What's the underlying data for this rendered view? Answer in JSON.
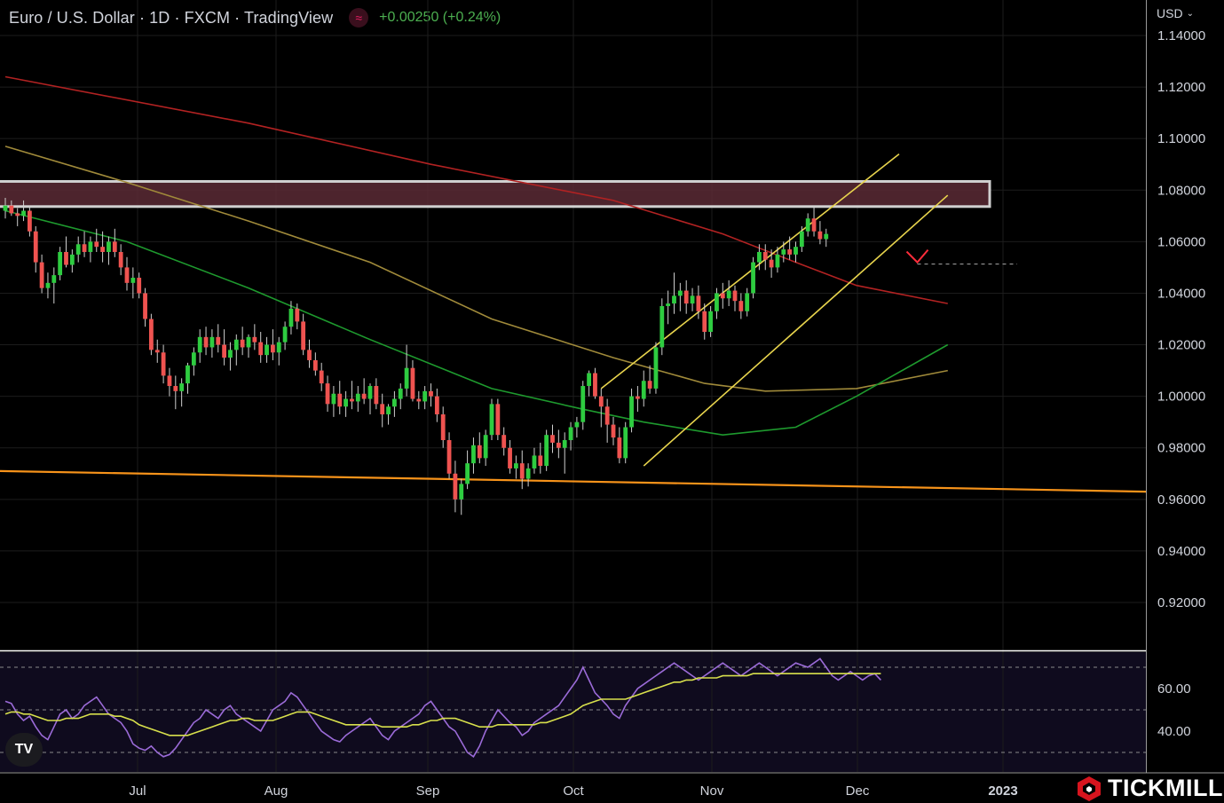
{
  "header": {
    "symbol": "Euro / U.S. Dollar · 1D · FXCM · TradingView",
    "indicator_icon": "wave-icon",
    "change": "+0.00250 (+0.24%)"
  },
  "currency_selector": {
    "label": "USD"
  },
  "brand": {
    "name": "TICKMILL",
    "color": "#d7141e"
  },
  "colors": {
    "up": "#26a69a",
    "up_bright": "#2ecc40",
    "down": "#ef5350",
    "ma_red": "#b22222",
    "ma_tan": "#a08a3a",
    "ma_green": "#1e9a2e",
    "support": "#f7931a",
    "channel": "#e8d44d",
    "zone": "#5a2a35",
    "rsi": "#9b6bd8",
    "rsi_ma": "#d8e04c"
  },
  "chart_data": {
    "type": "candlestick",
    "price_axis": {
      "min": 0.9,
      "max": 1.15,
      "ticks": [
        "1.14000",
        "1.12000",
        "1.10000",
        "1.08000",
        "1.06000",
        "1.04000",
        "1.02000",
        "1.00000",
        "0.98000",
        "0.96000",
        "0.94000",
        "0.92000"
      ]
    },
    "time_axis": {
      "labels": [
        "Jul",
        "Aug",
        "Sep",
        "Oct",
        "Nov",
        "Dec",
        "2023"
      ]
    },
    "rsi": {
      "ticks": [
        "60.00",
        "40.00"
      ],
      "overbought": 70,
      "middle": 50,
      "oversold": 30
    },
    "resistance_zone": {
      "low": 1.075,
      "high": 1.082
    },
    "candles": [
      [
        1.072,
        1.077,
        1.069,
        1.074
      ],
      [
        1.074,
        1.076,
        1.07,
        1.071
      ],
      [
        1.071,
        1.073,
        1.066,
        1.07
      ],
      [
        1.07,
        1.076,
        1.068,
        1.072
      ],
      [
        1.072,
        1.074,
        1.062,
        1.064
      ],
      [
        1.064,
        1.066,
        1.048,
        1.052
      ],
      [
        1.052,
        1.055,
        1.04,
        1.042
      ],
      [
        1.042,
        1.048,
        1.038,
        1.044
      ],
      [
        1.044,
        1.05,
        1.036,
        1.047
      ],
      [
        1.047,
        1.058,
        1.045,
        1.056
      ],
      [
        1.056,
        1.062,
        1.05,
        1.051
      ],
      [
        1.051,
        1.057,
        1.048,
        1.055
      ],
      [
        1.055,
        1.062,
        1.052,
        1.059
      ],
      [
        1.059,
        1.064,
        1.054,
        1.056
      ],
      [
        1.056,
        1.062,
        1.052,
        1.06
      ],
      [
        1.06,
        1.065,
        1.056,
        1.058
      ],
      [
        1.058,
        1.064,
        1.052,
        1.056
      ],
      [
        1.056,
        1.062,
        1.051,
        1.06
      ],
      [
        1.06,
        1.065,
        1.054,
        1.056
      ],
      [
        1.056,
        1.059,
        1.047,
        1.05
      ],
      [
        1.05,
        1.054,
        1.041,
        1.044
      ],
      [
        1.044,
        1.05,
        1.038,
        1.046
      ],
      [
        1.046,
        1.048,
        1.038,
        1.04
      ],
      [
        1.04,
        1.042,
        1.027,
        1.03
      ],
      [
        1.03,
        1.032,
        1.016,
        1.018
      ],
      [
        1.018,
        1.022,
        1.013,
        1.017
      ],
      [
        1.017,
        1.02,
        1.005,
        1.008
      ],
      [
        1.008,
        1.011,
        1.0,
        1.004
      ],
      [
        1.004,
        1.008,
        0.995,
        1.002
      ],
      [
        1.002,
        1.007,
        0.996,
        1.005
      ],
      [
        1.005,
        1.013,
        1.001,
        1.012
      ],
      [
        1.012,
        1.019,
        1.008,
        1.017
      ],
      [
        1.017,
        1.026,
        1.013,
        1.023
      ],
      [
        1.023,
        1.027,
        1.016,
        1.019
      ],
      [
        1.019,
        1.026,
        1.015,
        1.023
      ],
      [
        1.023,
        1.028,
        1.017,
        1.02
      ],
      [
        1.02,
        1.026,
        1.012,
        1.015
      ],
      [
        1.015,
        1.021,
        1.01,
        1.018
      ],
      [
        1.018,
        1.024,
        1.012,
        1.022
      ],
      [
        1.022,
        1.027,
        1.016,
        1.019
      ],
      [
        1.019,
        1.024,
        1.015,
        1.023
      ],
      [
        1.023,
        1.028,
        1.018,
        1.021
      ],
      [
        1.021,
        1.025,
        1.013,
        1.016
      ],
      [
        1.016,
        1.023,
        1.013,
        1.02
      ],
      [
        1.02,
        1.026,
        1.014,
        1.017
      ],
      [
        1.017,
        1.023,
        1.012,
        1.021
      ],
      [
        1.021,
        1.029,
        1.018,
        1.027
      ],
      [
        1.027,
        1.037,
        1.024,
        1.034
      ],
      [
        1.034,
        1.036,
        1.026,
        1.029
      ],
      [
        1.029,
        1.032,
        1.016,
        1.018
      ],
      [
        1.018,
        1.022,
        1.011,
        1.014
      ],
      [
        1.014,
        1.017,
        1.008,
        1.01
      ],
      [
        1.01,
        1.013,
        1.002,
        1.005
      ],
      [
        1.005,
        1.008,
        0.994,
        0.997
      ],
      [
        0.997,
        1.004,
        0.992,
        1.001
      ],
      [
        1.001,
        1.006,
        0.993,
        0.996
      ],
      [
        0.996,
        1.002,
        0.992,
        0.999
      ],
      [
        0.999,
        1.006,
        0.995,
        0.998
      ],
      [
        0.998,
        1.004,
        0.994,
        1.001
      ],
      [
        1.001,
        1.007,
        0.997,
        0.999
      ],
      [
        0.999,
        1.005,
        0.993,
        1.004
      ],
      [
        1.004,
        1.007,
        0.995,
        0.997
      ],
      [
        0.997,
        1.001,
        0.988,
        0.993
      ],
      [
        0.993,
        0.997,
        0.989,
        0.996
      ],
      [
        0.996,
        1.002,
        0.992,
        0.999
      ],
      [
        0.999,
        1.005,
        0.995,
        1.003
      ],
      [
        1.003,
        1.02,
        1.0,
        1.011
      ],
      [
        1.011,
        1.014,
        0.998,
        0.999
      ],
      [
        0.999,
        1.002,
        0.995,
        0.998
      ],
      [
        0.998,
        1.004,
        0.995,
        1.002
      ],
      [
        1.002,
        1.005,
        0.996,
        1.0
      ],
      [
        1.0,
        1.003,
        0.99,
        0.993
      ],
      [
        0.993,
        0.996,
        0.98,
        0.983
      ],
      [
        0.983,
        0.986,
        0.968,
        0.97
      ],
      [
        0.97,
        0.975,
        0.955,
        0.96
      ],
      [
        0.96,
        0.968,
        0.954,
        0.966
      ],
      [
        0.966,
        0.979,
        0.964,
        0.974
      ],
      [
        0.974,
        0.984,
        0.97,
        0.981
      ],
      [
        0.981,
        0.986,
        0.974,
        0.976
      ],
      [
        0.976,
        0.987,
        0.973,
        0.985
      ],
      [
        0.985,
        0.999,
        0.983,
        0.997
      ],
      [
        0.997,
        0.999,
        0.983,
        0.985
      ],
      [
        0.985,
        0.988,
        0.977,
        0.98
      ],
      [
        0.98,
        0.983,
        0.97,
        0.972
      ],
      [
        0.972,
        0.977,
        0.968,
        0.974
      ],
      [
        0.974,
        0.979,
        0.964,
        0.968
      ],
      [
        0.968,
        0.974,
        0.965,
        0.972
      ],
      [
        0.972,
        0.98,
        0.97,
        0.977
      ],
      [
        0.977,
        0.982,
        0.97,
        0.973
      ],
      [
        0.973,
        0.987,
        0.971,
        0.985
      ],
      [
        0.985,
        0.989,
        0.978,
        0.982
      ],
      [
        0.982,
        0.987,
        0.976,
        0.98
      ],
      [
        0.98,
        0.986,
        0.97,
        0.983
      ],
      [
        0.983,
        0.99,
        0.979,
        0.988
      ],
      [
        0.988,
        0.992,
        0.984,
        0.99
      ],
      [
        0.99,
        1.006,
        0.987,
        1.004
      ],
      [
        1.004,
        1.01,
        1.0,
        1.009
      ],
      [
        1.009,
        1.011,
        0.999,
        1.0
      ],
      [
        1.0,
        1.003,
        0.988,
        0.996
      ],
      [
        0.996,
        0.999,
        0.982,
        0.989
      ],
      [
        0.989,
        0.992,
        0.981,
        0.984
      ],
      [
        0.984,
        0.988,
        0.974,
        0.976
      ],
      [
        0.976,
        0.99,
        0.974,
        0.988
      ],
      [
        0.988,
        1.003,
        0.986,
        1.0
      ],
      [
        1.0,
        1.004,
        0.994,
        0.999
      ],
      [
        0.999,
        1.01,
        0.996,
        1.006
      ],
      [
        1.006,
        1.012,
        1.001,
        1.003
      ],
      [
        1.003,
        1.021,
        1.001,
        1.019
      ],
      [
        1.019,
        1.038,
        1.016,
        1.035
      ],
      [
        1.035,
        1.041,
        1.028,
        1.036
      ],
      [
        1.036,
        1.048,
        1.032,
        1.039
      ],
      [
        1.039,
        1.044,
        1.033,
        1.041
      ],
      [
        1.041,
        1.045,
        1.032,
        1.036
      ],
      [
        1.036,
        1.042,
        1.033,
        1.039
      ],
      [
        1.039,
        1.043,
        1.03,
        1.033
      ],
      [
        1.033,
        1.036,
        1.022,
        1.025
      ],
      [
        1.025,
        1.035,
        1.023,
        1.033
      ],
      [
        1.033,
        1.042,
        1.03,
        1.04
      ],
      [
        1.04,
        1.044,
        1.034,
        1.038
      ],
      [
        1.038,
        1.045,
        1.035,
        1.041
      ],
      [
        1.041,
        1.043,
        1.033,
        1.037
      ],
      [
        1.037,
        1.04,
        1.03,
        1.033
      ],
      [
        1.033,
        1.042,
        1.031,
        1.04
      ],
      [
        1.04,
        1.054,
        1.038,
        1.052
      ],
      [
        1.052,
        1.059,
        1.049,
        1.056
      ],
      [
        1.056,
        1.059,
        1.049,
        1.053
      ],
      [
        1.053,
        1.057,
        1.046,
        1.05
      ],
      [
        1.05,
        1.058,
        1.048,
        1.055
      ],
      [
        1.055,
        1.06,
        1.052,
        1.057
      ],
      [
        1.057,
        1.062,
        1.053,
        1.055
      ],
      [
        1.055,
        1.06,
        1.052,
        1.058
      ],
      [
        1.058,
        1.066,
        1.056,
        1.064
      ],
      [
        1.064,
        1.071,
        1.062,
        1.069
      ],
      [
        1.069,
        1.074,
        1.062,
        1.064
      ],
      [
        1.064,
        1.068,
        1.059,
        1.061
      ],
      [
        1.061,
        1.065,
        1.058,
        1.063
      ]
    ],
    "moving_averages": [
      {
        "name": "",
        "color": "#b22222",
        "points": [
          [
            0,
            1.124
          ],
          [
            40,
            1.106
          ],
          [
            70,
            1.09
          ],
          [
            100,
            1.076
          ],
          [
            118,
            1.063
          ],
          [
            130,
            1.052
          ],
          [
            140,
            1.043
          ],
          [
            155,
            1.036
          ]
        ]
      },
      {
        "name": "",
        "color": "#a08a3a",
        "points": [
          [
            0,
            1.097
          ],
          [
            20,
            1.083
          ],
          [
            40,
            1.068
          ],
          [
            60,
            1.052
          ],
          [
            80,
            1.03
          ],
          [
            100,
            1.015
          ],
          [
            115,
            1.005
          ],
          [
            125,
            1.002
          ],
          [
            140,
            1.003
          ],
          [
            155,
            1.01
          ]
        ]
      },
      {
        "name": "",
        "color": "#1e9a2e",
        "points": [
          [
            0,
            1.072
          ],
          [
            20,
            1.06
          ],
          [
            40,
            1.042
          ],
          [
            60,
            1.022
          ],
          [
            80,
            1.003
          ],
          [
            95,
            0.995
          ],
          [
            105,
            0.99
          ],
          [
            118,
            0.985
          ],
          [
            130,
            0.988
          ],
          [
            140,
            1.0
          ],
          [
            155,
            1.02
          ]
        ]
      }
    ],
    "support_line": [
      [
        0,
        0.971
      ],
      [
        150,
        0.963
      ]
    ],
    "channel": {
      "upper": [
        [
          98,
          1.003
        ],
        [
          147,
          1.094
        ]
      ],
      "lower": [
        [
          105,
          0.973
        ],
        [
          155,
          1.078
        ]
      ]
    },
    "arrow_target": {
      "index": 150,
      "price": 1.052
    },
    "rsi_values": [
      54,
      53,
      48,
      45,
      47,
      42,
      38,
      36,
      42,
      48,
      50,
      46,
      48,
      52,
      54,
      56,
      52,
      48,
      46,
      44,
      40,
      34,
      32,
      31,
      33,
      30,
      28,
      29,
      32,
      36,
      40,
      44,
      46,
      50,
      48,
      46,
      50,
      52,
      48,
      46,
      44,
      42,
      40,
      45,
      50,
      52,
      54,
      58,
      56,
      52,
      48,
      44,
      40,
      38,
      36,
      35,
      38,
      40,
      42,
      44,
      46,
      42,
      38,
      36,
      40,
      42,
      44,
      46,
      48,
      52,
      54,
      50,
      46,
      42,
      40,
      35,
      30,
      28,
      33,
      40,
      45,
      50,
      47,
      44,
      42,
      38,
      40,
      44,
      46,
      48,
      50,
      52,
      56,
      60,
      64,
      70,
      64,
      58,
      55,
      52,
      48,
      46,
      52,
      56,
      60,
      62,
      64,
      66,
      68,
      70,
      72,
      70,
      68,
      66,
      64,
      66,
      68,
      70,
      72,
      70,
      68,
      66,
      68,
      70,
      72,
      70,
      68,
      66,
      68,
      70,
      72,
      71,
      70,
      72,
      74,
      70,
      66,
      64,
      66,
      68,
      66,
      64,
      66,
      67,
      64
    ],
    "rsi_ma_values": [
      48,
      49,
      49,
      48,
      48,
      47,
      46,
      45,
      45,
      45,
      46,
      46,
      46,
      47,
      48,
      48,
      48,
      48,
      47,
      47,
      46,
      45,
      43,
      42,
      41,
      40,
      39,
      38,
      38,
      38,
      38,
      39,
      40,
      41,
      42,
      43,
      44,
      45,
      45,
      46,
      46,
      45,
      45,
      45,
      45,
      46,
      47,
      48,
      49,
      49,
      49,
      48,
      47,
      46,
      45,
      44,
      43,
      43,
      43,
      43,
      43,
      43,
      42,
      42,
      42,
      42,
      42,
      43,
      43,
      44,
      45,
      45,
      46,
      46,
      46,
      45,
      44,
      43,
      42,
      42,
      42,
      43,
      43,
      43,
      43,
      43,
      43,
      43,
      44,
      44,
      45,
      46,
      47,
      48,
      50,
      52,
      53,
      54,
      55,
      55,
      55,
      55,
      55,
      56,
      57,
      58,
      59,
      60,
      61,
      62,
      63,
      63,
      64,
      64,
      65,
      65,
      65,
      65,
      66,
      66,
      66,
      66,
      66,
      67,
      67,
      67,
      67,
      67,
      67,
      67,
      67,
      67,
      67,
      67,
      67,
      67,
      67,
      67,
      67,
      67,
      67,
      67,
      67,
      67,
      67
    ]
  }
}
